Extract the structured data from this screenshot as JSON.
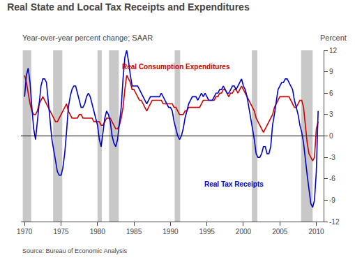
{
  "chart_data": {
    "type": "line",
    "title": "Real State and Local Tax Receipts and Expenditures",
    "subtitle": "Year-over-year percent change; SAAR",
    "ylabel": "Percent",
    "source": "Source: Bureau of Economic Analysis",
    "x": [
      1970.0,
      1970.25,
      1970.5,
      1970.75,
      1971.0,
      1971.25,
      1971.5,
      1971.75,
      1972.0,
      1972.25,
      1972.5,
      1972.75,
      1973.0,
      1973.25,
      1973.5,
      1973.75,
      1974.0,
      1974.25,
      1974.5,
      1974.75,
      1975.0,
      1975.25,
      1975.5,
      1975.75,
      1976.0,
      1976.25,
      1976.5,
      1976.75,
      1977.0,
      1977.25,
      1977.5,
      1977.75,
      1978.0,
      1978.25,
      1978.5,
      1978.75,
      1979.0,
      1979.25,
      1979.5,
      1979.75,
      1980.0,
      1980.25,
      1980.5,
      1980.75,
      1981.0,
      1981.25,
      1981.5,
      1981.75,
      1982.0,
      1982.25,
      1982.5,
      1982.75,
      1983.0,
      1983.25,
      1983.5,
      1983.75,
      1984.0,
      1984.25,
      1984.5,
      1984.75,
      1985.0,
      1985.25,
      1985.5,
      1985.75,
      1986.0,
      1986.25,
      1986.5,
      1986.75,
      1987.0,
      1987.25,
      1987.5,
      1987.75,
      1988.0,
      1988.25,
      1988.5,
      1988.75,
      1989.0,
      1989.25,
      1989.5,
      1989.75,
      1990.0,
      1990.25,
      1990.5,
      1990.75,
      1991.0,
      1991.25,
      1991.5,
      1991.75,
      1992.0,
      1992.25,
      1992.5,
      1992.75,
      1993.0,
      1993.25,
      1993.5,
      1993.75,
      1994.0,
      1994.25,
      1994.5,
      1994.75,
      1995.0,
      1995.25,
      1995.5,
      1995.75,
      1996.0,
      1996.25,
      1996.5,
      1996.75,
      1997.0,
      1997.25,
      1997.5,
      1997.75,
      1998.0,
      1998.25,
      1998.5,
      1998.75,
      1999.0,
      1999.25,
      1999.5,
      1999.75,
      2000.0,
      2000.25,
      2000.5,
      2000.75,
      2001.0,
      2001.25,
      2001.5,
      2001.75,
      2002.0,
      2002.25,
      2002.5,
      2002.75,
      2003.0,
      2003.25,
      2003.5,
      2003.75,
      2004.0,
      2004.25,
      2004.5,
      2004.75,
      2005.0,
      2005.25,
      2005.5,
      2005.75,
      2006.0,
      2006.25,
      2006.5,
      2006.75,
      2007.0,
      2007.25,
      2007.5,
      2007.75,
      2008.0,
      2008.25,
      2008.5,
      2008.75,
      2009.0,
      2009.25,
      2009.5,
      2009.75,
      2010.0,
      2010.25
    ],
    "series": [
      {
        "color": "#cc0000",
        "values": [
          8.5,
          7.5,
          6.0,
          4.5,
          3.5,
          3.0,
          3.0,
          3.5,
          4.5,
          5.0,
          5.5,
          5.0,
          4.5,
          4.0,
          3.5,
          3.0,
          2.5,
          2.0,
          2.0,
          2.5,
          3.0,
          3.5,
          4.0,
          4.5,
          3.5,
          3.0,
          2.5,
          2.5,
          2.5,
          2.5,
          3.0,
          3.0,
          2.5,
          2.5,
          2.5,
          2.5,
          2.5,
          2.5,
          2.0,
          2.0,
          2.0,
          2.0,
          1.5,
          1.5,
          2.0,
          2.5,
          2.5,
          2.5,
          2.0,
          1.5,
          1.0,
          1.0,
          1.5,
          2.5,
          4.0,
          6.5,
          8.5,
          8.0,
          7.5,
          6.5,
          6.5,
          6.0,
          5.5,
          5.0,
          5.0,
          4.5,
          4.0,
          3.5,
          4.0,
          4.5,
          5.0,
          5.0,
          5.0,
          5.0,
          5.0,
          5.0,
          4.5,
          4.5,
          4.5,
          4.5,
          4.5,
          4.5,
          4.0,
          4.0,
          3.5,
          3.0,
          3.0,
          3.0,
          3.5,
          3.5,
          4.0,
          4.0,
          4.0,
          4.0,
          4.0,
          4.0,
          4.0,
          4.5,
          5.0,
          5.0,
          5.0,
          5.0,
          5.0,
          5.0,
          5.0,
          5.5,
          5.5,
          6.0,
          6.0,
          6.5,
          6.5,
          6.0,
          5.5,
          6.0,
          6.0,
          6.5,
          6.5,
          6.0,
          6.5,
          7.0,
          6.5,
          6.0,
          5.5,
          5.0,
          4.5,
          4.0,
          3.5,
          2.5,
          2.0,
          1.5,
          1.0,
          0.5,
          1.0,
          1.5,
          2.0,
          2.5,
          3.0,
          4.0,
          4.5,
          5.0,
          5.5,
          5.5,
          5.5,
          5.5,
          5.5,
          5.5,
          5.0,
          4.5,
          4.0,
          4.0,
          4.5,
          5.0,
          5.0,
          4.0,
          1.5,
          -1.0,
          -2.5,
          -3.0,
          -3.5,
          -3.0,
          1.0,
          2.0
        ]
      },
      {
        "color": "#0000cc",
        "values": [
          5.5,
          8.5,
          9.5,
          7.5,
          4.0,
          1.0,
          -0.5,
          2.0,
          5.0,
          7.0,
          8.0,
          8.0,
          7.5,
          5.0,
          2.0,
          -0.5,
          -2.0,
          -3.5,
          -5.0,
          -5.5,
          -5.5,
          -4.5,
          -2.5,
          0.5,
          4.0,
          5.5,
          6.5,
          7.0,
          7.0,
          6.0,
          5.0,
          4.0,
          4.0,
          4.5,
          5.5,
          6.0,
          5.5,
          4.5,
          3.5,
          2.5,
          1.5,
          -0.5,
          -1.5,
          0.5,
          2.5,
          3.5,
          3.0,
          2.0,
          0.0,
          -1.0,
          -1.5,
          -0.5,
          1.5,
          4.0,
          8.0,
          11.0,
          12.0,
          10.5,
          8.5,
          7.0,
          7.0,
          7.0,
          7.0,
          6.5,
          6.0,
          5.5,
          5.0,
          4.5,
          5.0,
          5.5,
          5.5,
          5.5,
          5.5,
          5.5,
          5.5,
          6.0,
          5.5,
          5.0,
          4.5,
          4.0,
          4.0,
          3.5,
          2.0,
          1.0,
          0.0,
          -0.5,
          0.0,
          1.0,
          2.5,
          3.5,
          4.5,
          5.0,
          5.5,
          5.5,
          5.5,
          5.0,
          5.5,
          6.0,
          5.5,
          6.0,
          5.5,
          5.0,
          5.0,
          5.0,
          5.5,
          6.0,
          6.0,
          6.5,
          6.5,
          7.0,
          6.5,
          6.0,
          6.0,
          6.5,
          7.0,
          7.0,
          6.5,
          7.0,
          7.5,
          8.0,
          7.0,
          6.5,
          5.5,
          4.0,
          2.5,
          1.0,
          -0.5,
          -2.5,
          -3.0,
          -3.0,
          -2.5,
          -1.5,
          -1.5,
          -2.5,
          -2.5,
          -1.5,
          1.5,
          3.0,
          5.0,
          6.5,
          7.0,
          7.5,
          7.5,
          8.0,
          8.0,
          7.5,
          7.0,
          6.5,
          5.0,
          4.0,
          3.0,
          1.5,
          0.5,
          -1.0,
          -3.5,
          -5.5,
          -7.5,
          -9.5,
          -10.0,
          -9.0,
          -5.0,
          3.5
        ]
      }
    ],
    "annotations": [
      {
        "text": "Real Consumption Expenditures",
        "x": 1983.2,
        "y": 9.0,
        "color": "#cc0000"
      },
      {
        "text": "Real Tax Receipts",
        "x": 1994.5,
        "y": -7.5,
        "color": "#0000cc"
      }
    ],
    "shaded_ranges": [
      [
        1969.75,
        1970.917
      ],
      [
        1973.917,
        1975.167
      ],
      [
        1980.0,
        1980.583
      ],
      [
        1981.583,
        1982.917
      ],
      [
        1990.583,
        1991.333
      ],
      [
        2001.167,
        2001.917
      ],
      [
        2007.917,
        2009.5
      ]
    ],
    "shaded_color": "#c8c8c8",
    "xlim": [
      1969.5,
      2011.0
    ],
    "xticks": [
      1970,
      1975,
      1980,
      1985,
      1990,
      1995,
      2000,
      2005,
      2010
    ],
    "ylim": [
      -12,
      12
    ],
    "yticks": [
      -12,
      -9,
      -6,
      -3,
      0,
      3,
      6,
      9,
      12
    ],
    "grid": false
  }
}
